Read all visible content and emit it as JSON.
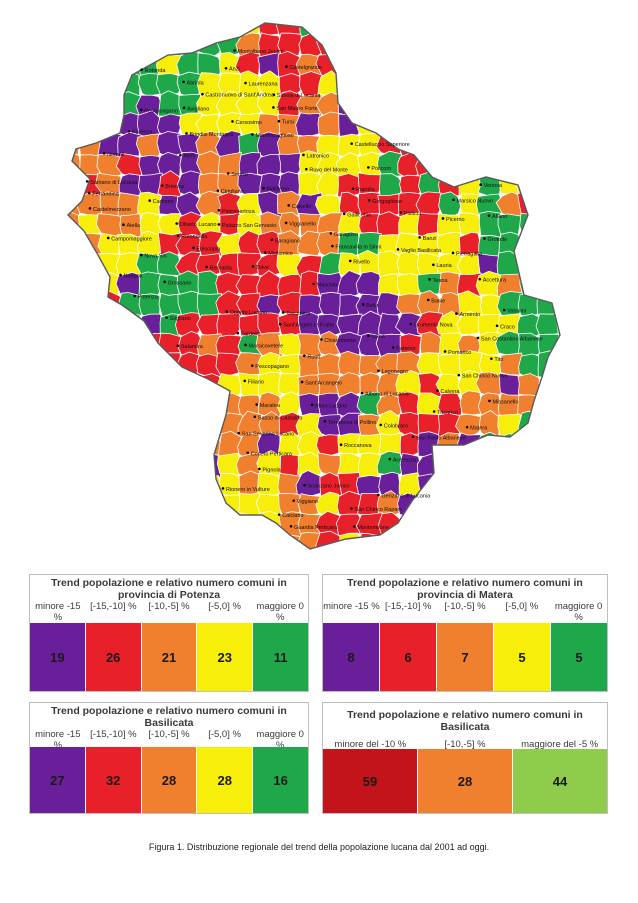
{
  "colors": {
    "purple": "#6a1f9a",
    "red": "#e8202a",
    "orange": "#f07f2e",
    "yellow": "#f7ee0a",
    "green": "#1fa84a",
    "darkred": "#c3141c",
    "lightgreen": "#8fcc4b",
    "border": "#ffffff"
  },
  "map": {
    "place_labels": [
      "Melfi",
      "Montemilone",
      "Rapolla",
      "Venosa",
      "Barile",
      "Palazzo San Gervasio",
      "Rionero in Vulture",
      "Maschito",
      "Atella",
      "Banzi",
      "Ruvo del Monte",
      "Forenza",
      "Genzano di Lucania",
      "Pescopagano",
      "Castelgrande",
      "Filiano",
      "Acerenza",
      "Muro Lucano",
      "Irsina",
      "Matera",
      "Bella",
      "Avigliano",
      "Pietragalla",
      "Oppido Lucano",
      "Tolve",
      "Baragiano",
      "Ruoti",
      "San Chirico Nuovo",
      "Picerno",
      "Potenza",
      "Vaglio Basilicata",
      "Tricarico",
      "Grottole",
      "Miglionico",
      "Montescaglioso",
      "Tito",
      "Brindisi Montagna",
      "Albano di Lucania",
      "Grassano",
      "Savoia di Lucania",
      "Sant'Angelo le Fratte",
      "Satriano di Lucania",
      "Pignola",
      "Ferrandina",
      "Pomarico",
      "Sasso di Castalda",
      "Abriola",
      "Anzi",
      "Salandra",
      "Calvello",
      "Laurenzana",
      "Brienza",
      "Marsico Nuovo",
      "Marsicovetere",
      "Viggiano",
      "Corleto Perticara",
      "Stigliano",
      "Pisticci",
      "Craco",
      "Paterno",
      "Grumento Nova",
      "Montalbano Jonico",
      "Scanzano Jonico",
      "Policoro",
      "Moliterno",
      "Sant'Arcangelo",
      "Roccanova",
      "Tursi",
      "Rotondella",
      "Colobraro",
      "Valsinni",
      "Lauria",
      "Lagonegro",
      "Rivello",
      "Nemoli",
      "Latronico",
      "Castelluccio Superiore",
      "Episcopia",
      "Senise",
      "Chiaromonte",
      "Nova Siri",
      "Trecchina",
      "Maratea",
      "Terranova di Pollino",
      "San Severino Lucano",
      "Francavilla in Sinni",
      "Cersosimo",
      "San Paolo Albanese",
      "Noepoli",
      "Fardella",
      "Rotonda",
      "Viggianello",
      "San Costantino Albanese",
      "Calvera",
      "Teana",
      "Carbone",
      "Castronuovo di Sant'Andrea",
      "San Chirico Raparo",
      "Armento",
      "Missanello",
      "Gallicchio",
      "Guardia Perticara",
      "Gorgoglione",
      "Cirigliano",
      "Aliano",
      "Accettura",
      "Oliveto Lucano",
      "Garaguso",
      "Calciano",
      "Campomaggiore",
      "Castelmezzano",
      "Pietrapertosa",
      "San Mauro Forte",
      "Pescopagano",
      "Bernalda"
    ]
  },
  "tables": [
    {
      "title": "Trend popolazione e relativo numero comuni in provincia di Potenza",
      "headers": [
        "minore -15 %",
        "[-15,-10] %",
        "[-10,-5] %",
        "[-5,0] %",
        "maggiore 0 %"
      ],
      "values": [
        "19",
        "26",
        "21",
        "23",
        "11"
      ],
      "colors": [
        "#6a1f9a",
        "#e8202a",
        "#f07f2e",
        "#f7ee0a",
        "#1fa84a"
      ]
    },
    {
      "title": "Trend popolazione e relativo numero comuni in provincia di Matera",
      "headers": [
        "minore -15 %",
        "[-15,-10] %",
        "[-10,-5] %",
        "[-5,0] %",
        "maggiore 0 %"
      ],
      "values": [
        "8",
        "6",
        "7",
        "5",
        "5"
      ],
      "colors": [
        "#6a1f9a",
        "#e8202a",
        "#f07f2e",
        "#f7ee0a",
        "#1fa84a"
      ]
    },
    {
      "title": "Trend popolazione e relativo numero comuni in Basilicata",
      "headers": [
        "minore -15 %",
        "[-15,-10] %",
        "[-10,-5] %",
        "[-5,0] %",
        "maggiore 0 %"
      ],
      "values": [
        "27",
        "32",
        "28",
        "28",
        "16"
      ],
      "colors": [
        "#6a1f9a",
        "#e8202a",
        "#f07f2e",
        "#f7ee0a",
        "#1fa84a"
      ]
    },
    {
      "title": "Trend popolazione e relativo numero comuni in Basilicata",
      "headers": [
        "minore del -10 %",
        "[-10,-5] %",
        "maggiore del -5 %"
      ],
      "values": [
        "59",
        "28",
        "44"
      ],
      "colors": [
        "#c3141c",
        "#f07f2e",
        "#8fcc4b"
      ]
    }
  ],
  "caption": "Figura 1. Distribuzione regionale del trend della popolazione lucana dal 2001 ad oggi."
}
